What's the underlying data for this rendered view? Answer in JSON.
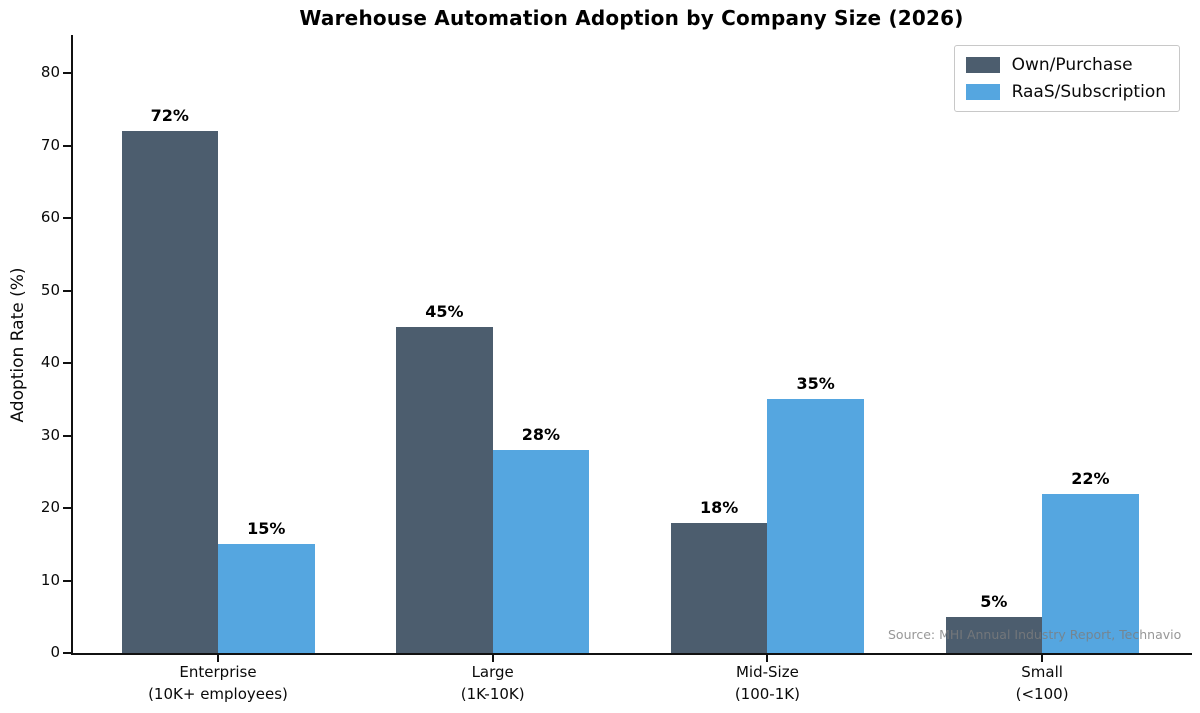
{
  "chart_data": {
    "type": "bar",
    "title": "Warehouse Automation Adoption by Company Size (2026)",
    "categories": [
      "Enterprise\n(10K+ employees)",
      "Large\n(1K-10K)",
      "Mid-Size\n(100-1K)",
      "Small\n(<100)"
    ],
    "series": [
      {
        "name": "Own/Purchase",
        "color": "#4c5d6e",
        "values": [
          72,
          45,
          18,
          5
        ]
      },
      {
        "name": "RaaS/Subscription",
        "color": "#55a6e0",
        "values": [
          15,
          28,
          35,
          22
        ]
      }
    ],
    "value_label_suffix": "%",
    "xlabel": "",
    "ylabel": "Adoption Rate (%)",
    "ylim": [
      0,
      85.25
    ],
    "yticks": [
      0,
      10,
      20,
      30,
      40,
      50,
      60,
      70,
      80
    ],
    "grid": false,
    "legend_position": "upper right",
    "annotations": [
      {
        "text": "Source: MHI Annual Industry Report, Technavio",
        "color": "#7d7d7d",
        "position": "bottom-right"
      }
    ]
  }
}
